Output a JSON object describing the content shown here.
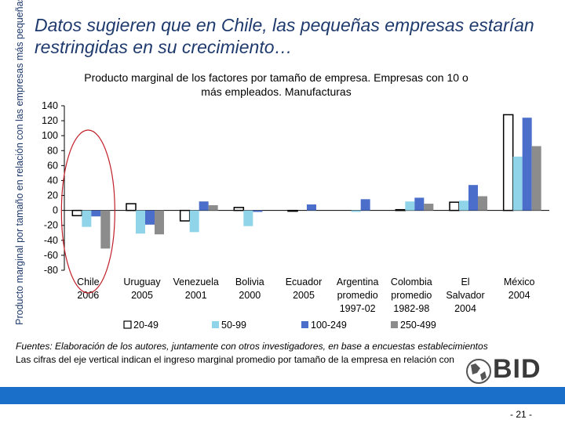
{
  "slide": {
    "title": "Datos sugieren que en Chile, las pequeñas empresas estarían restringidas en su crecimiento…",
    "side_label": "Producto  marginal por tamaño en relación con las empresas más pequeñas",
    "footer_source": "Fuentes: Elaboración de los autores, juntamente con otros investigadores, en base a encuestas establecimientos",
    "footer_note": "Las cifras del eje vertical indican el ingreso marginal promedio por tamaño de la empresa en relación con",
    "page_number": "- 21 -",
    "logo_text": "BID"
  },
  "chart_data": {
    "type": "bar",
    "title": "Producto marginal de los factores por tamaño de empresa. Empresas con 10 o más empleados. Manufacturas",
    "ylim": [
      -80,
      140
    ],
    "yticks": [
      140,
      120,
      100,
      80,
      60,
      40,
      20,
      0,
      -20,
      -40,
      -60,
      -80
    ],
    "categories": [
      [
        "Chile",
        "2006"
      ],
      [
        "Uruguay",
        "2005"
      ],
      [
        "Venezuela",
        "2001"
      ],
      [
        "Bolivia",
        "2000"
      ],
      [
        "Ecuador",
        "2005"
      ],
      [
        "Argentina",
        "promedio",
        "1997-02"
      ],
      [
        "Colombia",
        "promedio",
        "1982-98"
      ],
      [
        "El",
        "Salvador",
        "2004"
      ],
      [
        "México",
        "2004"
      ]
    ],
    "series": [
      {
        "name": "20-49",
        "color": "#ffffff",
        "values": [
          -7,
          9,
          -14,
          4,
          -1,
          0,
          1,
          11,
          128
        ]
      },
      {
        "name": "50-99",
        "color": "#8fd4e8",
        "values": [
          -22,
          -31,
          -29,
          -21,
          0,
          -2,
          12,
          13,
          72
        ]
      },
      {
        "name": "100-249",
        "color": "#4a6ec9",
        "values": [
          -8,
          -19,
          12,
          -2,
          8,
          15,
          17,
          34,
          124
        ]
      },
      {
        "name": "250-499",
        "color": "#8c8c8c",
        "values": [
          -51,
          -32,
          7,
          0,
          0,
          0,
          9,
          19,
          86
        ]
      }
    ],
    "highlight": "Chile 2006"
  }
}
